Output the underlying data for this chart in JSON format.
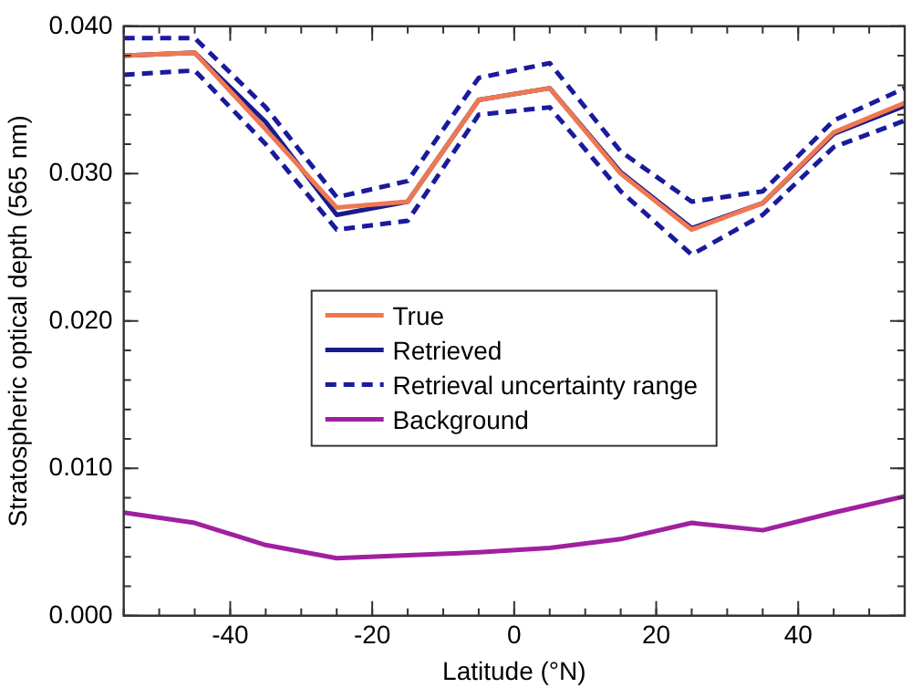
{
  "chart_data": {
    "type": "line",
    "xlabel": "Latitude (°N)",
    "ylabel": "Stratospheric optical depth (565 nm)",
    "x": [
      -55,
      -45,
      -35,
      -25,
      -15,
      -5,
      5,
      15,
      25,
      35,
      45,
      55
    ],
    "xlim": [
      -55,
      55
    ],
    "xticks": [
      -40,
      -20,
      0,
      20,
      40
    ],
    "ylim": [
      0,
      0.04
    ],
    "yticks": [
      {
        "value": 0,
        "label": "0.000"
      },
      {
        "value": 0.01,
        "label": "0.010"
      },
      {
        "value": 0.02,
        "label": "0.020"
      },
      {
        "value": 0.03,
        "label": "0.030"
      },
      {
        "value": 0.04,
        "label": "0.040"
      }
    ],
    "grid": false,
    "legend": "center",
    "marker": "none",
    "series": [
      {
        "name": "True",
        "color": "#f07850",
        "line_style": "solid",
        "values": [
          0.038,
          0.0382,
          0.033,
          0.0277,
          0.0281,
          0.035,
          0.0358,
          0.03,
          0.0262,
          0.028,
          0.0328,
          0.0348
        ]
      },
      {
        "name": "Retrieved",
        "color": "#1a1a8c",
        "line_style": "solid",
        "values": [
          0.038,
          0.0382,
          0.0335,
          0.0272,
          0.0281,
          0.035,
          0.0358,
          0.0301,
          0.0263,
          0.028,
          0.0327,
          0.0346
        ]
      },
      {
        "name": "Retrieval uncertainty range",
        "color": "#1a1a9c",
        "line_style": "dashed",
        "values": [
          0.0392,
          0.0392,
          0.0345,
          0.0284,
          0.0295,
          0.0365,
          0.0375,
          0.0315,
          0.0281,
          0.0288,
          0.0336,
          0.0358
        ]
      },
      {
        "color": "#1a1a9c",
        "line_style": "dashed",
        "values": [
          0.0367,
          0.037,
          0.032,
          0.0262,
          0.0268,
          0.034,
          0.0345,
          0.0288,
          0.0245,
          0.0272,
          0.0318,
          0.0336
        ]
      },
      {
        "name": "Background",
        "color": "#a020a0",
        "line_style": "solid",
        "values": [
          0.007,
          0.0063,
          0.0048,
          0.0039,
          0.0041,
          0.0043,
          0.0046,
          0.0052,
          0.0063,
          0.0058,
          0.007,
          0.0081
        ]
      }
    ]
  }
}
